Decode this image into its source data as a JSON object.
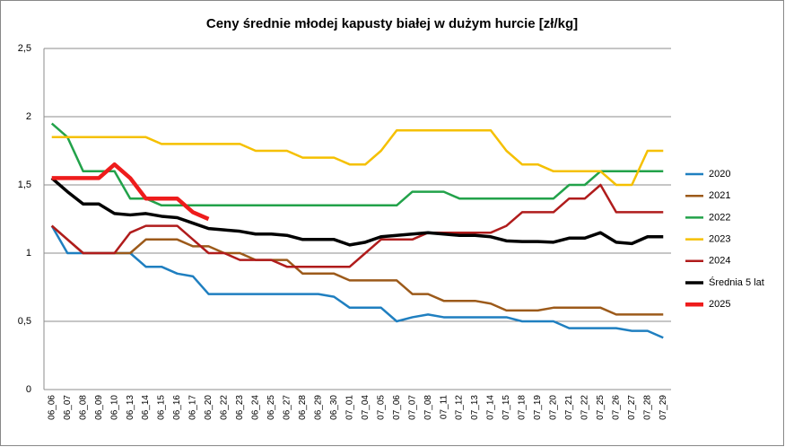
{
  "chart_data": {
    "type": "line",
    "title": "Ceny średnie młodej kapusty białej w dużym hurcie [zł/kg]",
    "categories": [
      "06_06",
      "06_07",
      "06_08",
      "06_09",
      "06_10",
      "06_13",
      "06_14",
      "06_15",
      "06_16",
      "06_17",
      "06_20",
      "06_22",
      "06_23",
      "06_24",
      "06_25",
      "06_27",
      "06_28",
      "06_29",
      "06_30",
      "07_01",
      "07_04",
      "07_05",
      "07_06",
      "07_07",
      "07_08",
      "07_11",
      "07_12",
      "07_13",
      "07_14",
      "07_15",
      "07_18",
      "07_19",
      "07_20",
      "07_21",
      "07_22",
      "07_25",
      "07_26",
      "07_27",
      "07_28",
      "07_29"
    ],
    "ylim": [
      0,
      2.5
    ],
    "yticks": [
      0,
      {
        "value": 0.5,
        "label": "0,5"
      },
      1,
      {
        "value": 1.5,
        "label": "1,5"
      },
      2,
      {
        "value": 2.5,
        "label": "2,5"
      }
    ],
    "grid": true,
    "legend": "right",
    "series": [
      {
        "name": "2020",
        "color": "#1f7fc0",
        "width": 2.5,
        "values": [
          1.2,
          1.0,
          1.0,
          1.0,
          1.0,
          1.0,
          0.9,
          0.9,
          0.85,
          0.83,
          0.7,
          0.7,
          0.7,
          0.7,
          0.7,
          0.7,
          0.7,
          0.7,
          0.68,
          0.6,
          0.6,
          0.6,
          0.5,
          0.53,
          0.55,
          0.53,
          0.53,
          0.53,
          0.53,
          0.53,
          0.5,
          0.5,
          0.5,
          0.45,
          0.45,
          0.45,
          0.45,
          0.43,
          0.43,
          0.38
        ]
      },
      {
        "name": "2021",
        "color": "#9c5a1a",
        "width": 2.5,
        "values": [
          1.2,
          1.1,
          1.0,
          1.0,
          1.0,
          1.0,
          1.1,
          1.1,
          1.1,
          1.05,
          1.05,
          1.0,
          1.0,
          0.95,
          0.95,
          0.95,
          0.85,
          0.85,
          0.85,
          0.8,
          0.8,
          0.8,
          0.8,
          0.7,
          0.7,
          0.65,
          0.65,
          0.65,
          0.63,
          0.58,
          0.58,
          0.58,
          0.6,
          0.6,
          0.6,
          0.6,
          0.55,
          0.55,
          0.55,
          0.55
        ]
      },
      {
        "name": "2022",
        "color": "#22a24a",
        "width": 2.5,
        "values": [
          1.95,
          1.85,
          1.6,
          1.6,
          1.6,
          1.4,
          1.4,
          1.35,
          1.35,
          1.35,
          1.35,
          1.35,
          1.35,
          1.35,
          1.35,
          1.35,
          1.35,
          1.35,
          1.35,
          1.35,
          1.35,
          1.35,
          1.35,
          1.45,
          1.45,
          1.45,
          1.4,
          1.4,
          1.4,
          1.4,
          1.4,
          1.4,
          1.4,
          1.5,
          1.5,
          1.6,
          1.6,
          1.6,
          1.6,
          1.6
        ]
      },
      {
        "name": "2023",
        "color": "#f5c000",
        "width": 2.5,
        "values": [
          1.85,
          1.85,
          1.85,
          1.85,
          1.85,
          1.85,
          1.85,
          1.8,
          1.8,
          1.8,
          1.8,
          1.8,
          1.8,
          1.75,
          1.75,
          1.75,
          1.7,
          1.7,
          1.7,
          1.65,
          1.65,
          1.75,
          1.9,
          1.9,
          1.9,
          1.9,
          1.9,
          1.9,
          1.9,
          1.75,
          1.65,
          1.65,
          1.6,
          1.6,
          1.6,
          1.6,
          1.5,
          1.5,
          1.75,
          1.75
        ]
      },
      {
        "name": "2024",
        "color": "#b01c1c",
        "width": 2.5,
        "values": [
          1.2,
          1.1,
          1.0,
          1.0,
          1.0,
          1.15,
          1.2,
          1.2,
          1.2,
          1.1,
          1.0,
          1.0,
          0.95,
          0.95,
          0.95,
          0.9,
          0.9,
          0.9,
          0.9,
          0.9,
          1.0,
          1.1,
          1.1,
          1.1,
          1.15,
          1.15,
          1.15,
          1.15,
          1.15,
          1.2,
          1.3,
          1.3,
          1.3,
          1.4,
          1.4,
          1.5,
          1.3,
          1.3,
          1.3,
          1.3
        ]
      },
      {
        "name": "Średnia 5 lat",
        "color": "#000000",
        "width": 3.5,
        "values": [
          1.55,
          1.45,
          1.36,
          1.36,
          1.29,
          1.28,
          1.29,
          1.27,
          1.26,
          1.22,
          1.18,
          1.17,
          1.16,
          1.14,
          1.14,
          1.13,
          1.1,
          1.1,
          1.1,
          1.06,
          1.08,
          1.12,
          1.13,
          1.14,
          1.15,
          1.14,
          1.13,
          1.13,
          1.12,
          1.09,
          1.085,
          1.085,
          1.08,
          1.11,
          1.11,
          1.15,
          1.08,
          1.07,
          1.12,
          1.12
        ]
      },
      {
        "name": "2025",
        "color": "#ee1c1c",
        "width": 4.5,
        "values": [
          1.55,
          1.55,
          1.55,
          1.55,
          1.65,
          1.55,
          1.4,
          1.4,
          1.4,
          1.3,
          1.25,
          null,
          null,
          null,
          null,
          null,
          null,
          null,
          null,
          null,
          null,
          null,
          null,
          null,
          null,
          null,
          null,
          null,
          null,
          null,
          null,
          null,
          null,
          null,
          null,
          null,
          null,
          null,
          null,
          null
        ]
      }
    ]
  }
}
